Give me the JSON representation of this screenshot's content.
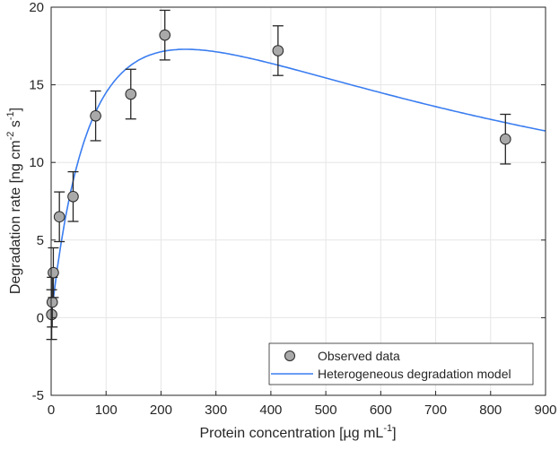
{
  "chart_data": {
    "type": "scatter",
    "xlabel": {
      "main": "Protein concentration [µg mL",
      "sup": "-1",
      "end": "]"
    },
    "ylabel": {
      "p1": "Degradation rate [ng cm",
      "sup1": "-2",
      "p2": " s",
      "sup2": "-1",
      "end": "]"
    },
    "xlim": [
      0,
      900
    ],
    "ylim": [
      -5,
      20
    ],
    "xticks": [
      0,
      100,
      200,
      300,
      400,
      500,
      600,
      700,
      800,
      900
    ],
    "yticks": [
      -5,
      0,
      5,
      10,
      15,
      20
    ],
    "grid": true,
    "legend": {
      "placement": "bottom-right",
      "entries": [
        "Observed data",
        "Heterogeneous degradation model"
      ]
    },
    "series": [
      {
        "name": "Observed data",
        "type": "scatter-errorbar",
        "x": [
          1,
          2,
          4,
          15,
          40,
          81,
          145,
          207,
          413,
          827
        ],
        "y": [
          0.2,
          1.0,
          2.9,
          6.5,
          7.8,
          13.0,
          14.4,
          18.2,
          17.2,
          11.5
        ],
        "err": [
          1.6,
          1.6,
          1.6,
          1.6,
          1.6,
          1.6,
          1.6,
          1.6,
          1.6,
          1.6
        ]
      },
      {
        "name": "Heterogeneous degradation model",
        "type": "line",
        "model": {
          "Vmax": 31.4,
          "K": 100,
          "Ki": 600
        },
        "x": [
          0,
          10,
          20,
          40,
          60,
          80,
          100,
          150,
          200,
          245,
          300,
          400,
          500,
          600,
          700,
          800,
          900
        ],
        "y": [
          0,
          2.84,
          5.14,
          8.8,
          11.36,
          13.17,
          14.48,
          16.31,
          17.07,
          17.29,
          17.22,
          16.68,
          15.88,
          15.01,
          14.15,
          13.34,
          12.58
        ]
      }
    ],
    "colors": {
      "line": "#3a7df0",
      "marker": "#a9a9a9",
      "marker_edge": "#262626",
      "grid": "#e6e6e6"
    }
  }
}
